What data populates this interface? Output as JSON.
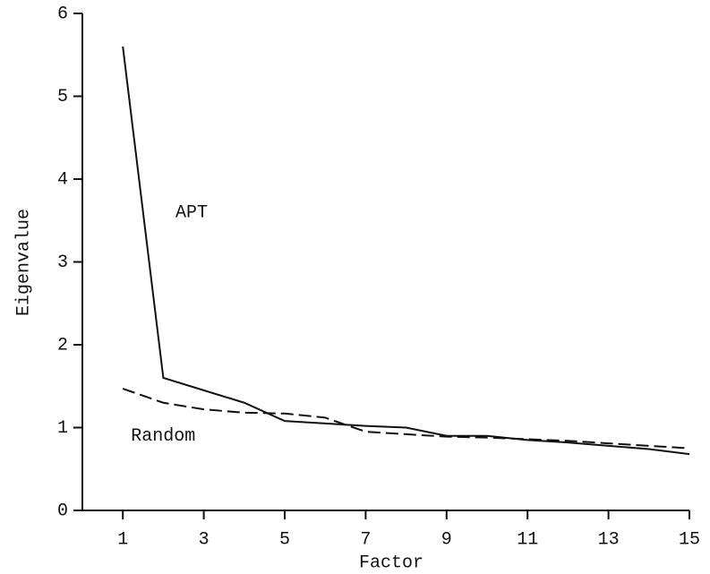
{
  "chart_data": {
    "type": "line",
    "x_label": "Factor",
    "y_label": "Eigenvalue",
    "x": [
      1,
      2,
      3,
      4,
      5,
      6,
      7,
      8,
      9,
      10,
      11,
      12,
      13,
      14,
      15
    ],
    "series": [
      {
        "name": "APT",
        "color": "#111111",
        "line_style": "solid",
        "values": [
          5.6,
          1.6,
          1.45,
          1.3,
          1.08,
          1.05,
          1.02,
          1.0,
          0.9,
          0.9,
          0.85,
          0.82,
          0.78,
          0.74,
          0.68
        ]
      },
      {
        "name": "Random",
        "color": "#111111",
        "line_style": "dashed",
        "values": [
          1.47,
          1.3,
          1.22,
          1.18,
          1.17,
          1.12,
          0.95,
          0.92,
          0.89,
          0.88,
          0.86,
          0.84,
          0.81,
          0.78,
          0.75
        ]
      }
    ],
    "xlim": [
      0,
      15
    ],
    "xticks": [
      1,
      3,
      5,
      7,
      9,
      11,
      13,
      15
    ],
    "ylim": [
      0,
      6
    ],
    "yticks": [
      0,
      1,
      2,
      3,
      4,
      5,
      6
    ],
    "grid": false
  }
}
